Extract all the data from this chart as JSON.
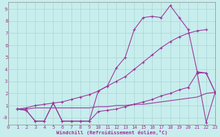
{
  "xlabel": "Windchill (Refroidissement éolien,°C)",
  "bg_color": "#c8eded",
  "grid_color": "#a8d4d4",
  "line_color": "#993399",
  "xlim": [
    0,
    23
  ],
  "ylim": [
    -0.6,
    9.6
  ],
  "x_ticks": [
    0,
    1,
    2,
    3,
    4,
    5,
    6,
    7,
    8,
    9,
    10,
    11,
    12,
    13,
    14,
    15,
    16,
    17,
    18,
    19,
    20,
    21,
    22,
    23
  ],
  "y_ticks": [
    0,
    1,
    2,
    3,
    4,
    5,
    6,
    7,
    8,
    9
  ],
  "y_tick_labels": [
    "-0",
    "1",
    "2",
    "3",
    "4",
    "5",
    "6",
    "7",
    "8",
    "9"
  ],
  "line1_x": [
    1,
    2,
    3,
    4,
    5,
    6,
    7,
    8,
    9,
    10,
    11,
    12,
    13,
    14,
    15,
    16,
    17,
    18,
    19,
    20,
    21,
    22,
    23
  ],
  "line1_y": [
    0.7,
    0.6,
    -0.3,
    -0.3,
    1.2,
    -0.3,
    -0.3,
    -0.3,
    -0.3,
    2.2,
    2.6,
    4.1,
    5.0,
    7.3,
    8.3,
    8.4,
    8.3,
    9.3,
    8.3,
    7.3,
    3.8,
    3.7,
    2.1
  ],
  "line2_x": [
    1,
    2,
    3,
    4,
    5,
    6,
    7,
    8,
    9,
    10,
    11,
    12,
    13,
    14,
    15,
    16,
    17,
    18,
    19,
    20,
    21,
    22
  ],
  "line2_y": [
    0.7,
    0.8,
    1.0,
    1.1,
    1.2,
    1.3,
    1.5,
    1.7,
    1.9,
    2.2,
    2.6,
    3.0,
    3.4,
    4.0,
    4.6,
    5.2,
    5.8,
    6.3,
    6.7,
    7.0,
    7.2,
    7.3
  ],
  "line3_x": [
    1,
    2,
    3,
    4,
    5,
    6,
    7,
    8,
    9,
    10,
    11,
    12,
    13,
    14,
    15,
    16,
    17,
    18,
    19,
    20,
    21,
    22,
    23
  ],
  "line3_y": [
    0.7,
    0.6,
    -0.3,
    -0.3,
    1.2,
    -0.3,
    -0.3,
    -0.3,
    -0.3,
    0.5,
    0.6,
    0.7,
    0.9,
    1.1,
    1.3,
    1.5,
    1.8,
    2.0,
    2.3,
    2.5,
    3.7,
    3.7,
    2.1
  ],
  "line4_x": [
    1,
    2,
    3,
    4,
    5,
    6,
    7,
    8,
    9,
    10,
    11,
    12,
    13,
    14,
    15,
    16,
    17,
    18,
    19,
    20,
    21,
    22,
    23
  ],
  "line4_y": [
    0.7,
    0.7,
    0.8,
    0.8,
    0.8,
    0.8,
    0.8,
    0.8,
    0.8,
    0.9,
    0.9,
    1.0,
    1.0,
    1.1,
    1.1,
    1.2,
    1.3,
    1.4,
    1.5,
    1.6,
    1.7,
    2.0,
    2.1
  ],
  "line5_x": [
    21,
    22,
    23
  ],
  "line5_y": [
    3.7,
    -0.4,
    2.1
  ]
}
